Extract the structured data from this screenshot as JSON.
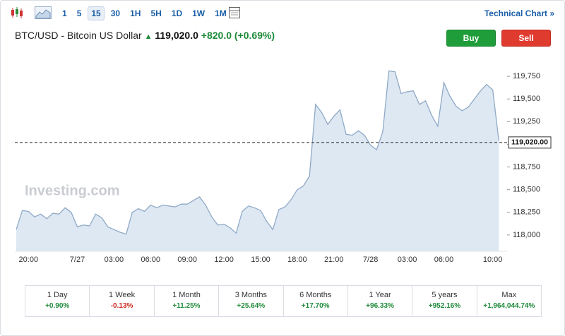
{
  "toolbar": {
    "intervals": [
      "1",
      "5",
      "15",
      "30",
      "1H",
      "5H",
      "1D",
      "1W",
      "1M"
    ],
    "link": "Technical Chart »"
  },
  "header": {
    "title": "BTC/USD - Bitcoin US Dollar",
    "price": "119,020.0",
    "change": "+820.0",
    "change_percent": "(+0.69%)",
    "buy": "Buy",
    "sell": "Sell"
  },
  "chart_data": {
    "type": "area",
    "watermark": "Investing.com",
    "color": "#8fa9c6",
    "fill": "#dde8f3",
    "categories": [
      null,
      null,
      "20:00",
      null,
      null,
      null,
      null,
      null,
      null,
      null,
      "7/27",
      null,
      null,
      null,
      null,
      null,
      "03:00",
      null,
      null,
      null,
      null,
      null,
      "06:00",
      null,
      null,
      null,
      null,
      null,
      "09:00",
      null,
      null,
      null,
      null,
      null,
      "12:00",
      null,
      null,
      null,
      null,
      null,
      "15:00",
      null,
      null,
      null,
      null,
      null,
      "18:00",
      null,
      null,
      null,
      null,
      null,
      "21:00",
      null,
      null,
      null,
      null,
      null,
      "7/28",
      null,
      null,
      null,
      null,
      null,
      "03:00",
      null,
      null,
      null,
      null,
      null,
      "06:00",
      null,
      null,
      null,
      null,
      null,
      null,
      null,
      "10:00",
      null
    ],
    "values": [
      118060,
      118270,
      118260,
      118200,
      118230,
      118180,
      118240,
      118230,
      118300,
      118250,
      118090,
      118110,
      118100,
      118230,
      118190,
      118090,
      118060,
      118030,
      118010,
      118250,
      118290,
      118260,
      118330,
      118300,
      118330,
      118320,
      118310,
      118340,
      118340,
      118380,
      118420,
      118330,
      118200,
      118110,
      118120,
      118080,
      118020,
      118260,
      118320,
      118300,
      118270,
      118150,
      118060,
      118280,
      118310,
      118390,
      118500,
      118540,
      118650,
      119440,
      119350,
      119220,
      119310,
      119380,
      119110,
      119100,
      119150,
      119100,
      118990,
      118940,
      119140,
      119810,
      119800,
      119560,
      119580,
      119590,
      119440,
      119480,
      119320,
      119200,
      119680,
      119530,
      119420,
      119370,
      119410,
      119500,
      119590,
      119660,
      119600,
      119040
    ],
    "ylim": [
      117820,
      120000
    ],
    "yticks": [
      {
        "value": 118000,
        "label": "118,000"
      },
      {
        "value": 118250,
        "label": "118,250"
      },
      {
        "value": 118500,
        "label": "118,500"
      },
      {
        "value": 118750,
        "label": "118,750"
      },
      {
        "value": 119000,
        "label": "119,000"
      },
      {
        "value": 119250,
        "label": "119,250"
      },
      {
        "value": 119500,
        "label": "119,500"
      },
      {
        "value": 119750,
        "label": "119,750"
      }
    ],
    "last_price": {
      "value": 119020,
      "label": "119,020.00"
    }
  },
  "performance": [
    {
      "period": "1 Day",
      "change": "+0.90%"
    },
    {
      "period": "1 Week",
      "change": "-0.13%"
    },
    {
      "period": "1 Month",
      "change": "+11.25%"
    },
    {
      "period": "3 Months",
      "change": "+25.64%"
    },
    {
      "period": "6 Months",
      "change": "+17.70%"
    },
    {
      "period": "1 Year",
      "change": "+96.33%"
    },
    {
      "period": "5 years",
      "change": "+952.16%"
    },
    {
      "period": "Max",
      "change": "+1,964,044.74%"
    }
  ]
}
